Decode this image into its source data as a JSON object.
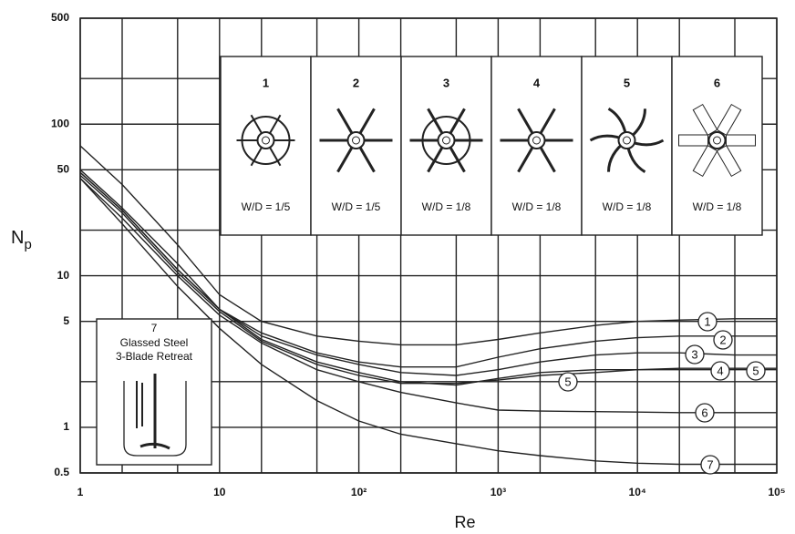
{
  "chart_data": {
    "type": "line",
    "x_label": "Re",
    "y_label": {
      "base": "N",
      "sub": "p"
    },
    "log_x": true,
    "log_y": true,
    "grid": true,
    "xlim": [
      1,
      100000
    ],
    "xticks": [
      1,
      10,
      {
        "value": 100,
        "label": "10²"
      },
      {
        "value": 1000,
        "label": "10³"
      },
      {
        "value": 10000,
        "label": "10⁴"
      },
      {
        "value": 100000,
        "label": "10⁵"
      }
    ],
    "x_minor_grid": [
      2,
      5,
      20,
      50,
      200,
      500,
      2000,
      5000,
      20000,
      50000
    ],
    "ylim": [
      0.5,
      500
    ],
    "yticks": [
      0.5,
      1,
      5,
      10,
      50,
      100,
      500
    ],
    "y_minor_grid": [
      2,
      20,
      200
    ],
    "x": [
      1,
      2,
      5,
      10,
      20,
      50,
      100,
      200,
      500,
      1000,
      2000,
      5000,
      10000,
      20000,
      50000,
      100000
    ],
    "series": [
      {
        "name": "1",
        "color": "#222222",
        "values": [
          72,
          40,
          16,
          7.5,
          5.0,
          4.0,
          3.7,
          3.5,
          3.5,
          3.8,
          4.2,
          4.7,
          5.0,
          5.1,
          5.2,
          5.2
        ]
      },
      {
        "name": "2",
        "color": "#222222",
        "values": [
          50,
          28,
          12,
          6.0,
          4.2,
          3.1,
          2.7,
          2.5,
          2.5,
          2.9,
          3.3,
          3.7,
          3.9,
          4.0,
          4.0,
          4.0
        ]
      },
      {
        "name": "3",
        "color": "#222222",
        "values": [
          48,
          27,
          11,
          6.0,
          4.0,
          3.0,
          2.6,
          2.3,
          2.2,
          2.4,
          2.7,
          3.0,
          3.1,
          3.1,
          3.0,
          3.0
        ]
      },
      {
        "name": "4",
        "color": "#222222",
        "values": [
          48,
          27,
          11,
          6.0,
          3.8,
          2.7,
          2.3,
          2.0,
          1.9,
          2.1,
          2.3,
          2.4,
          2.4,
          2.4,
          2.4,
          2.4
        ]
      },
      {
        "name": "5",
        "color": "#222222",
        "values": [
          46,
          26,
          10.5,
          5.8,
          3.7,
          2.6,
          2.2,
          1.95,
          1.95,
          2.05,
          2.2,
          2.3,
          2.4,
          2.45,
          2.45,
          2.45
        ]
      },
      {
        "name": "6",
        "color": "#222222",
        "values": [
          44,
          24,
          10,
          5.5,
          3.6,
          2.4,
          2.0,
          1.7,
          1.45,
          1.3,
          1.28,
          1.27,
          1.26,
          1.25,
          1.25,
          1.25
        ]
      },
      {
        "name": "7",
        "color": "#222222",
        "values": [
          44,
          22,
          8.5,
          4.5,
          2.6,
          1.5,
          1.1,
          0.9,
          0.78,
          0.7,
          0.65,
          0.6,
          0.58,
          0.57,
          0.57,
          0.57
        ]
      }
    ],
    "impellers": [
      {
        "label": "1",
        "ratio": "W/D = 1/5"
      },
      {
        "label": "2",
        "ratio": "W/D = 1/5"
      },
      {
        "label": "3",
        "ratio": "W/D = 1/8"
      },
      {
        "label": "4",
        "ratio": "W/D = 1/8"
      },
      {
        "label": "5",
        "ratio": "W/D = 1/8"
      },
      {
        "label": "6",
        "ratio": "W/D = 1/8"
      }
    ],
    "inset": {
      "label": "7",
      "lines": [
        "Glassed Steel",
        "3-Blade Retreat"
      ]
    }
  }
}
